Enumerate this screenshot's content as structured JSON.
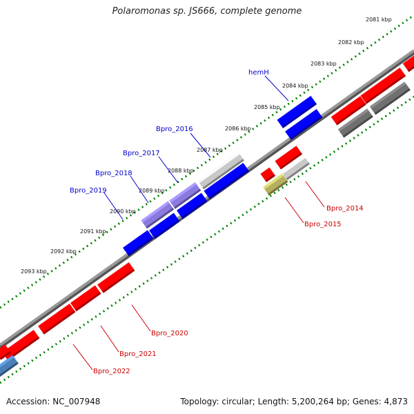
{
  "title": "Polaromonas sp. JS666, complete genome",
  "footer": {
    "accession": "Accession: NC_007948",
    "stats": "Topology: circular; Length: 5,200,264 bp; Genes: 4,873"
  },
  "colors": {
    "plus_strand": "#ff0000",
    "minus_strand": "#0000ff",
    "other_plus": "#c8c8c8",
    "other_dark": "#707070",
    "label_plus": "#cc0000",
    "label_minus": "#0000cc",
    "tick_green": "#008000",
    "backbone": "#8a8a8a",
    "pseudo_olive": "#b5b060",
    "purple": "#8a7ae0",
    "steel": "#4a7fb8"
  },
  "ticks": [
    "2081 kbp",
    "2082 kbp",
    "2083 kbp",
    "2084 kbp",
    "2085 kbp",
    "2086 kbp",
    "2087 kbp",
    "2088 kbp",
    "2089 kbp",
    "2090 kbp",
    "2091 kbp",
    "2092 kbp",
    "2093 kbp"
  ],
  "gene_labels": {
    "hemH": "hemH",
    "Bpro_2016": "Bpro_2016",
    "Bpro_2017": "Bpro_2017",
    "Bpro_2018": "Bpro_2018",
    "Bpro_2019": "Bpro_2019",
    "Bpro_2014": "Bpro_2014",
    "Bpro_2015": "Bpro_2015",
    "Bpro_2020": "Bpro_2020",
    "Bpro_2021": "Bpro_2021",
    "Bpro_2022": "Bpro_2022"
  }
}
